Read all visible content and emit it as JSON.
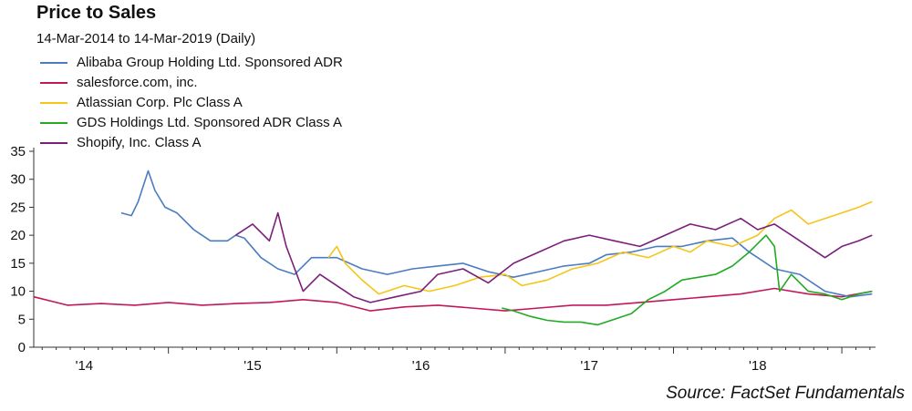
{
  "title": "Price to Sales",
  "subtitle": "14-Mar-2014 to 14-Mar-2019 (Daily)",
  "source": "Source: FactSet Fundamentals",
  "chart_data": {
    "type": "line",
    "title": "Price to Sales",
    "subtitle": "14-Mar-2014 to 14-Mar-2019 (Daily)",
    "xlabel": "",
    "ylabel": "",
    "x_range": [
      "2014-03-14",
      "2019-03-14"
    ],
    "xlim": [
      2014.2,
      2019.2
    ],
    "ylim": [
      0,
      35
    ],
    "y_ticks": [
      0,
      5,
      10,
      15,
      20,
      25,
      30,
      35
    ],
    "x_ticks": [
      {
        "label": "'14",
        "x": 2014.5
      },
      {
        "label": "'15",
        "x": 2015.5
      },
      {
        "label": "'16",
        "x": 2016.5
      },
      {
        "label": "'17",
        "x": 2017.5
      },
      {
        "label": "'18",
        "x": 2018.5
      }
    ],
    "grid": false,
    "legend_position": "top-left",
    "series": [
      {
        "name": "Alibaba Group Holding Ltd. Sponsored ADR",
        "color": "#4a7cc0",
        "x": [
          2014.72,
          2014.78,
          2014.82,
          2014.88,
          2014.92,
          2014.98,
          2015.05,
          2015.15,
          2015.25,
          2015.35,
          2015.4,
          2015.45,
          2015.55,
          2015.65,
          2015.75,
          2015.85,
          2016.0,
          2016.15,
          2016.3,
          2016.45,
          2016.6,
          2016.75,
          2016.9,
          2017.05,
          2017.2,
          2017.35,
          2017.5,
          2017.6,
          2017.75,
          2017.9,
          2018.05,
          2018.2,
          2018.35,
          2018.45,
          2018.5,
          2018.6,
          2018.75,
          2018.9,
          2019.05,
          2019.18
        ],
        "y": [
          24,
          23.5,
          26,
          31.5,
          28,
          25,
          24,
          21,
          19,
          19,
          20,
          19.5,
          16,
          14,
          13,
          16,
          16,
          14,
          13,
          14,
          14.5,
          15,
          13.5,
          12.5,
          13.5,
          14.5,
          15,
          16.5,
          17,
          18,
          18,
          19,
          19.5,
          17,
          16,
          14,
          13,
          10,
          9,
          9.5
        ]
      },
      {
        "name": "salesforce.com, inc.",
        "color": "#c2185b",
        "x": [
          2014.2,
          2014.4,
          2014.6,
          2014.8,
          2015.0,
          2015.2,
          2015.4,
          2015.6,
          2015.8,
          2016.0,
          2016.2,
          2016.4,
          2016.6,
          2016.8,
          2017.0,
          2017.2,
          2017.4,
          2017.6,
          2017.8,
          2018.0,
          2018.2,
          2018.4,
          2018.6,
          2018.8,
          2019.0,
          2019.18
        ],
        "y": [
          9,
          7.5,
          7.8,
          7.5,
          8,
          7.5,
          7.8,
          8,
          8.5,
          8,
          6.5,
          7.2,
          7.5,
          7,
          6.5,
          7,
          7.5,
          7.5,
          8,
          8.5,
          9,
          9.5,
          10.5,
          9.5,
          9,
          10
        ]
      },
      {
        "name": "Atlassian Corp. Plc Class A",
        "color": "#f5c518",
        "x": [
          2015.95,
          2016.0,
          2016.05,
          2016.15,
          2016.25,
          2016.4,
          2016.55,
          2016.7,
          2016.85,
          2017.0,
          2017.1,
          2017.25,
          2017.4,
          2017.55,
          2017.7,
          2017.85,
          2018.0,
          2018.1,
          2018.2,
          2018.35,
          2018.5,
          2018.6,
          2018.7,
          2018.8,
          2018.9,
          2019.0,
          2019.1,
          2019.18
        ],
        "y": [
          16,
          18,
          15,
          12,
          9.5,
          11,
          10,
          11,
          12.5,
          13,
          11,
          12,
          14,
          15,
          17,
          16,
          18,
          17,
          19,
          18,
          20,
          23,
          24.5,
          22,
          23,
          24,
          25,
          26
        ]
      },
      {
        "name": "GDS Holdings Ltd. Sponsored ADR Class A",
        "color": "#22aa22",
        "x": [
          2016.98,
          2017.05,
          2017.15,
          2017.25,
          2017.35,
          2017.45,
          2017.55,
          2017.65,
          2017.75,
          2017.85,
          2017.95,
          2018.05,
          2018.15,
          2018.25,
          2018.35,
          2018.45,
          2018.55,
          2018.6,
          2018.63,
          2018.7,
          2018.8,
          2018.9,
          2019.0,
          2019.1,
          2019.18
        ],
        "y": [
          7,
          6.5,
          5.5,
          4.8,
          4.5,
          4.5,
          4,
          5,
          6,
          8.5,
          10,
          12,
          12.5,
          13,
          14.5,
          17,
          20,
          18,
          10,
          13,
          10,
          9.5,
          8.5,
          9.5,
          10
        ]
      },
      {
        "name": "Shopify, Inc. Class A",
        "color": "#7b1f7b",
        "x": [
          2015.4,
          2015.5,
          2015.6,
          2015.65,
          2015.7,
          2015.8,
          2015.9,
          2016.0,
          2016.1,
          2016.2,
          2016.35,
          2016.5,
          2016.6,
          2016.75,
          2016.9,
          2017.05,
          2017.2,
          2017.35,
          2017.5,
          2017.65,
          2017.8,
          2017.95,
          2018.1,
          2018.25,
          2018.4,
          2018.5,
          2018.6,
          2018.7,
          2018.8,
          2018.9,
          2019.0,
          2019.1,
          2019.18
        ],
        "y": [
          20,
          22,
          19,
          24,
          18,
          10,
          13,
          11,
          9,
          8,
          9,
          10,
          13,
          14,
          11.5,
          15,
          17,
          19,
          20,
          19,
          18,
          20,
          22,
          21,
          23,
          21,
          22,
          20,
          18,
          16,
          18,
          19,
          20
        ]
      }
    ]
  }
}
